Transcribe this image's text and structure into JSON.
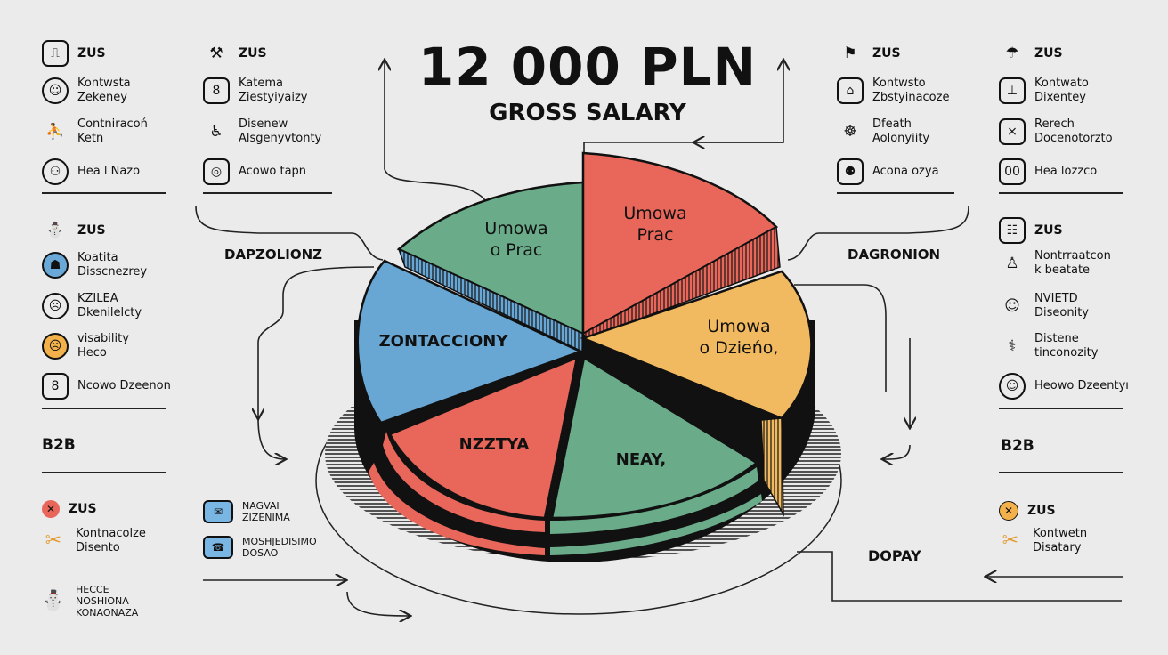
{
  "header": {
    "title": "12 000 PLN",
    "subtitle": "GROSS SALARY"
  },
  "colors": {
    "green": "#6aab8a",
    "red": "#e8675a",
    "orange": "#f2ba60",
    "blue": "#68a6d4"
  },
  "pie_segments": {
    "green_top": "Umowa\no Prac",
    "red_top": "Umowa\nPrac",
    "orange": "Umowa\no Dzieńo,",
    "blue": "ZONTACCIONY",
    "red_bottom": "NZZTYA",
    "green_bottom": "NEAY,"
  },
  "headings": {
    "left_mid": "DAPZOLIONZ",
    "right_mid": "DAGRONION",
    "right_bottom": "DOPAY",
    "left_b2b": "B2B",
    "right_b2b": "B2B"
  },
  "left_col1": [
    {
      "icon": "clipboard-icon",
      "glyph": "⎍",
      "label": "ZUS",
      "bold": true
    },
    {
      "icon": "person-icon",
      "glyph": "☺",
      "label": "Kontwsta\nZekeney"
    },
    {
      "icon": "exercise-icon",
      "glyph": "⛹",
      "label": "Contniracoń\nKetn"
    },
    {
      "icon": "health-icon",
      "glyph": "⚇",
      "label": "Hea l Nazo"
    }
  ],
  "left_col2": [
    {
      "icon": "worker-icon",
      "glyph": "⚒",
      "label": "ZUS",
      "bold": true
    },
    {
      "icon": "document-icon",
      "glyph": "8",
      "label": "Katema\nZiestyiyaizy"
    },
    {
      "icon": "disability-icon",
      "glyph": "♿",
      "label": "Disenew\nAlsgenyvtonty"
    },
    {
      "icon": "money-icon",
      "glyph": "◎",
      "label": "Acowo tapn"
    }
  ],
  "left_group2": [
    {
      "icon": "figure-icon",
      "glyph": "⛄",
      "label": "ZUS",
      "bold": true
    },
    {
      "icon": "shoulders-icon",
      "glyph": "☗",
      "label": "Koatita\nDisscnezrey"
    },
    {
      "icon": "face-icon",
      "glyph": "☹",
      "label": "KZILEA\nDkenilelcty"
    },
    {
      "icon": "angry-face-icon",
      "glyph": "☹",
      "label": "visability\nHeco"
    },
    {
      "icon": "contact-icon",
      "glyph": "8",
      "label": "Ncowo Dzeenon"
    }
  ],
  "left_b2b_items": [
    {
      "icon": "x-icon",
      "glyph": "✕",
      "label": "ZUS",
      "bold": true
    },
    {
      "icon": "tools-icon",
      "glyph": "✂",
      "label": "Kontnacolze\nDisento"
    },
    {
      "icon": "person-icon",
      "glyph": "⛄",
      "label": "HECCE\nNOSHIONA\nKONAONAZA"
    }
  ],
  "mid_bottom_items": [
    {
      "icon": "envelope-icon",
      "glyph": "✉",
      "label": "NAGVAI\nZIZENIMA"
    },
    {
      "icon": "card-icon",
      "glyph": "☎",
      "label": "MOSHJEDISIMO\nDOSAO"
    }
  ],
  "right_col1": [
    {
      "icon": "figure-icon",
      "glyph": "⚑",
      "label": "ZUS",
      "bold": true
    },
    {
      "icon": "teeth-icon",
      "glyph": "⌂",
      "label": "Kontwsto\nZbstyinacoze"
    },
    {
      "icon": "brain-icon",
      "glyph": "☸",
      "label": "Dfeath\nAolonyiity"
    },
    {
      "icon": "coins-icon",
      "glyph": "⚉",
      "label": "Acona ozya"
    }
  ],
  "right_col2": [
    {
      "icon": "bag-icon",
      "glyph": "☂",
      "label": "ZUS",
      "bold": true
    },
    {
      "icon": "stamp-icon",
      "glyph": "⊥",
      "label": "Kontwato\nDixentey"
    },
    {
      "icon": "tent-icon",
      "glyph": "⨯",
      "label": "Rerech\nDocenotorzto"
    },
    {
      "icon": "glasses-icon",
      "glyph": "00",
      "label": "Hea lozzco"
    }
  ],
  "right_group2": [
    {
      "icon": "calendar-icon",
      "glyph": "☷",
      "label": "ZUS",
      "bold": true
    },
    {
      "icon": "meditation-icon",
      "glyph": "♙",
      "label": "Nontrraatcon\nk beatate"
    },
    {
      "icon": "patient-icon",
      "glyph": "☺",
      "label": "NVIETD\nDiseonity"
    },
    {
      "icon": "crutches-icon",
      "glyph": "⚕",
      "label": "Distene\ntinconozity"
    },
    {
      "icon": "face-icon",
      "glyph": "☺",
      "label": "Heowo Dzeentyı"
    }
  ],
  "right_b2b_items": [
    {
      "icon": "x-icon",
      "glyph": "✕",
      "label": "ZUS",
      "bold": true
    },
    {
      "icon": "tools-icon",
      "glyph": "✂",
      "label": "Kontwetn\nDisatary"
    }
  ]
}
